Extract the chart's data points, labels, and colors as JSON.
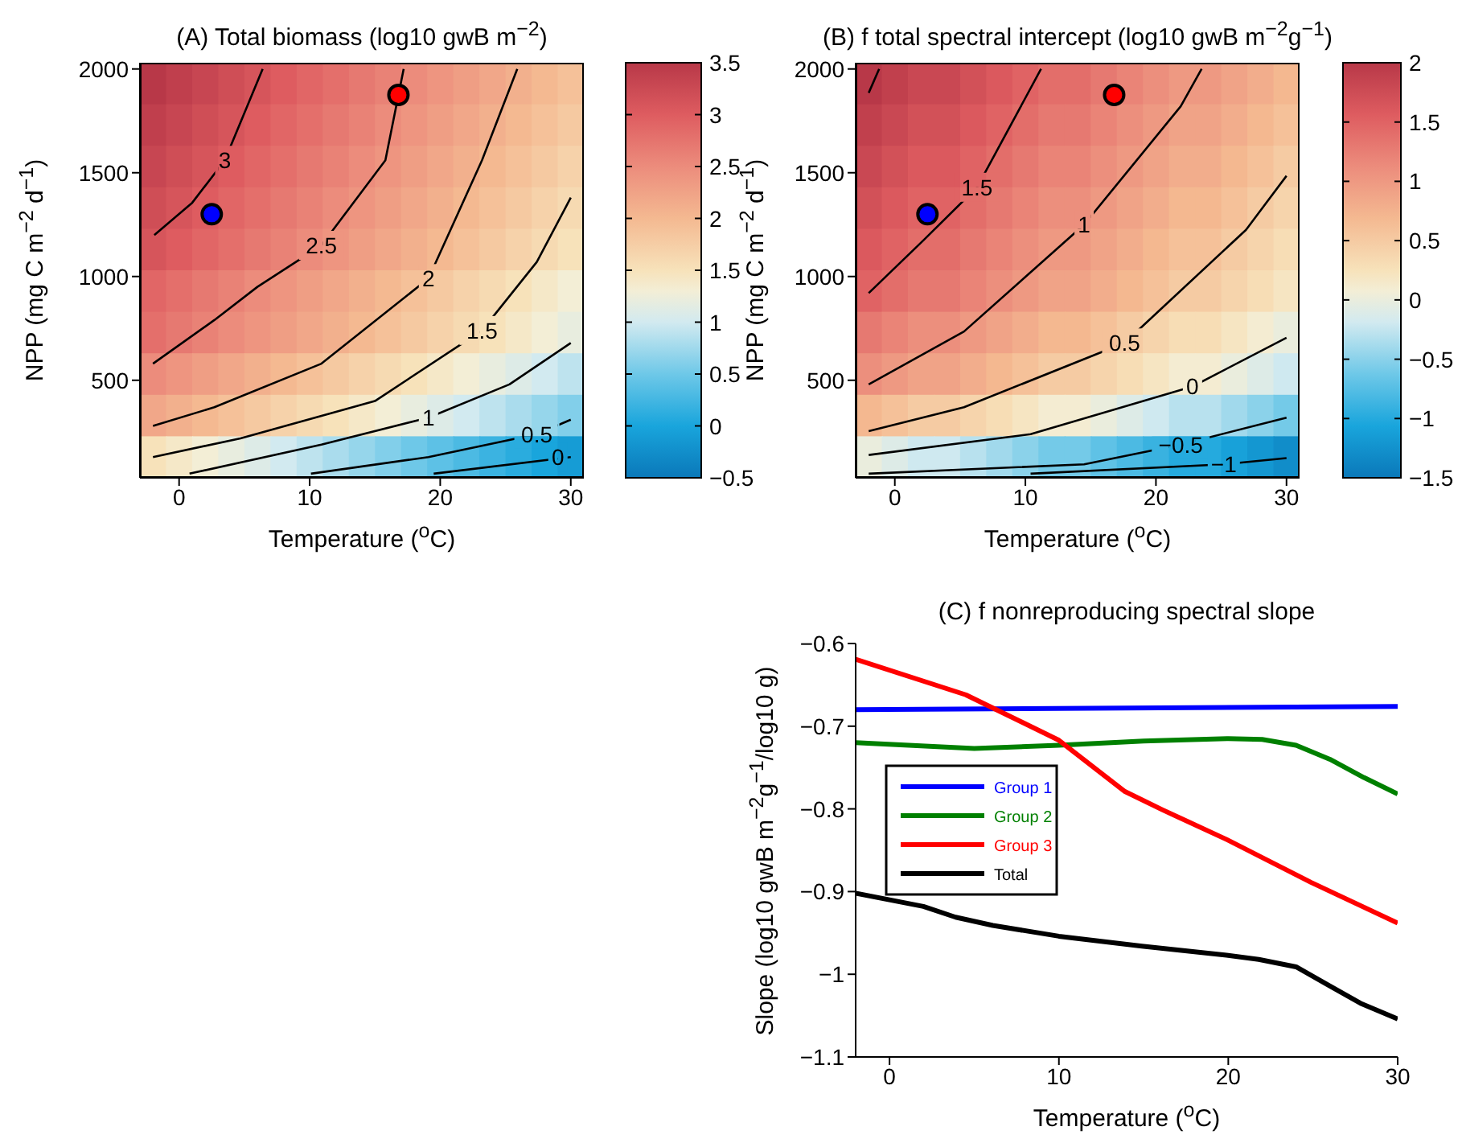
{
  "chart_data": [
    {
      "type": "heatmap",
      "title": "(A) Total biomass (log10 gwB m$^{−2}$)",
      "xlabel": "Temperature ($^{o}$C)",
      "ylabel": "NPP (mg C m$^{−2}$ d$^{−1}$)",
      "xlim": [
        -3,
        31
      ],
      "ylim": [
        30,
        2030
      ],
      "xticks": [
        0,
        10,
        20,
        30
      ],
      "yticks": [
        500,
        1000,
        1500,
        2000
      ],
      "clim": [
        -0.5,
        3.5
      ],
      "cticks": [
        -0.5,
        0,
        0.5,
        1,
        1.5,
        2,
        2.5,
        3,
        3.5
      ],
      "x": [
        -2,
        0,
        2,
        4,
        6,
        8,
        10,
        12,
        14,
        16,
        18,
        20,
        22,
        24,
        26,
        28,
        30
      ],
      "y": [
        1930,
        1730,
        1530,
        1330,
        1130,
        930,
        730,
        530,
        330,
        130
      ],
      "cells": [
        [
          3.5,
          3.4,
          3.3,
          3.2,
          3.1,
          3.0,
          2.9,
          2.8,
          2.7,
          2.6,
          2.5,
          2.4,
          2.3,
          2.2,
          2.1,
          2.0,
          1.9
        ],
        [
          3.4,
          3.3,
          3.2,
          3.1,
          3.0,
          2.9,
          2.8,
          2.7,
          2.6,
          2.5,
          2.4,
          2.3,
          2.2,
          2.1,
          2.0,
          1.9,
          1.8
        ],
        [
          3.3,
          3.2,
          3.1,
          3.0,
          2.9,
          2.8,
          2.7,
          2.6,
          2.5,
          2.4,
          2.3,
          2.2,
          2.1,
          2.0,
          1.9,
          1.8,
          1.7
        ],
        [
          3.2,
          3.1,
          3.0,
          2.9,
          2.8,
          2.7,
          2.6,
          2.5,
          2.4,
          2.3,
          2.2,
          2.1,
          2.0,
          1.9,
          1.8,
          1.7,
          1.6
        ],
        [
          3.1,
          3.0,
          2.9,
          2.8,
          2.7,
          2.6,
          2.5,
          2.4,
          2.3,
          2.2,
          2.1,
          2.0,
          1.9,
          1.8,
          1.7,
          1.6,
          1.5
        ],
        [
          2.9,
          2.8,
          2.7,
          2.6,
          2.5,
          2.4,
          2.3,
          2.2,
          2.1,
          2.0,
          1.9,
          1.8,
          1.7,
          1.6,
          1.5,
          1.4,
          1.3
        ],
        [
          2.8,
          2.7,
          2.6,
          2.5,
          2.4,
          2.3,
          2.2,
          2.1,
          2.0,
          1.9,
          1.8,
          1.7,
          1.6,
          1.5,
          1.4,
          1.3,
          1.2
        ],
        [
          2.5,
          2.4,
          2.3,
          2.2,
          2.1,
          2.0,
          1.9,
          1.8,
          1.7,
          1.6,
          1.5,
          1.4,
          1.3,
          1.2,
          1.1,
          1.0,
          0.9
        ],
        [
          2.2,
          2.1,
          2.0,
          1.9,
          1.8,
          1.7,
          1.6,
          1.5,
          1.4,
          1.3,
          1.2,
          1.1,
          1.0,
          0.9,
          0.8,
          0.7,
          0.6
        ],
        [
          1.5,
          1.4,
          1.3,
          1.2,
          1.1,
          1.0,
          0.9,
          0.8,
          0.7,
          0.6,
          0.5,
          0.4,
          0.3,
          0.2,
          0.1,
          0.0,
          -0.1
        ]
      ],
      "series": [
        {
          "type": "line",
          "name": "3",
          "color": "#000000",
          "x": [
            -1.9,
            1,
            3.5,
            6.4
          ],
          "values": [
            1200,
            1355,
            1560,
            2000
          ]
        },
        {
          "type": "line",
          "name": "2.5",
          "color": "#000000",
          "x": [
            -2,
            2.7,
            6,
            10.9,
            15.8,
            17.2
          ],
          "values": [
            580,
            790,
            950,
            1150,
            1560,
            2000
          ]
        },
        {
          "type": "line",
          "name": "2",
          "color": "#000000",
          "x": [
            -2,
            2.7,
            10.9,
            19.1,
            23.2,
            25.9
          ],
          "values": [
            280,
            370,
            580,
            990,
            1560,
            2000
          ]
        },
        {
          "type": "line",
          "name": "1.5",
          "color": "#000000",
          "x": [
            -2,
            4.7,
            15,
            23.2,
            27.4,
            30
          ],
          "values": [
            130,
            220,
            400,
            740,
            1070,
            1380
          ]
        },
        {
          "type": "line",
          "name": "1",
          "color": "#000000",
          "x": [
            0.8,
            10.9,
            19.1,
            25.3,
            30
          ],
          "values": [
            50,
            190,
            320,
            480,
            680
          ]
        },
        {
          "type": "line",
          "name": "0.5",
          "color": "#000000",
          "x": [
            10.1,
            19.1,
            27.4,
            30
          ],
          "values": [
            50,
            130,
            240,
            310
          ]
        },
        {
          "type": "line",
          "name": "0",
          "color": "#000000",
          "x": [
            19.5,
            30
          ],
          "values": [
            50,
            130
          ]
        },
        {
          "type": "scatter",
          "marker": "circle",
          "color": "#0000ff",
          "x": [
            2.5
          ],
          "values": [
            1300
          ]
        },
        {
          "type": "scatter",
          "marker": "circle",
          "color": "#ff0000",
          "x": [
            16.8
          ],
          "values": [
            1875
          ]
        }
      ]
    },
    {
      "type": "heatmap",
      "title": "(B) f total spectral intercept (log10 gwB m$^{−2}$g$^{−1}$)",
      "xlabel": "Temperature ($^{o}$C)",
      "ylabel": "NPP (mg C m$^{−2}$ d$^{−1}$)",
      "xlim": [
        -3,
        31
      ],
      "ylim": [
        30,
        2030
      ],
      "xticks": [
        0,
        10,
        20,
        30
      ],
      "yticks": [
        500,
        1000,
        1500,
        2000
      ],
      "clim": [
        -1.5,
        2
      ],
      "cticks": [
        -1.5,
        -1,
        -0.5,
        0,
        0.5,
        1,
        1.5,
        2
      ],
      "x": [
        -2,
        0,
        2,
        4,
        6,
        8,
        10,
        12,
        14,
        16,
        18,
        20,
        22,
        24,
        26,
        28,
        30
      ],
      "y": [
        1930,
        1730,
        1530,
        1330,
        1130,
        930,
        730,
        530,
        330,
        130
      ],
      "cells": [
        [
          2.0,
          1.9,
          1.8,
          1.8,
          1.7,
          1.6,
          1.5,
          1.4,
          1.4,
          1.3,
          1.2,
          1.1,
          1.0,
          1.0,
          0.9,
          0.8,
          0.7
        ],
        [
          1.9,
          1.8,
          1.7,
          1.7,
          1.6,
          1.5,
          1.4,
          1.3,
          1.3,
          1.2,
          1.1,
          1.0,
          0.9,
          0.9,
          0.8,
          0.7,
          0.6
        ],
        [
          1.8,
          1.7,
          1.6,
          1.6,
          1.5,
          1.4,
          1.3,
          1.2,
          1.2,
          1.1,
          1.0,
          0.9,
          0.8,
          0.8,
          0.7,
          0.6,
          0.5
        ],
        [
          1.7,
          1.6,
          1.5,
          1.5,
          1.4,
          1.3,
          1.2,
          1.1,
          1.1,
          1.0,
          0.9,
          0.8,
          0.7,
          0.7,
          0.6,
          0.5,
          0.4
        ],
        [
          1.6,
          1.5,
          1.4,
          1.4,
          1.3,
          1.2,
          1.1,
          1.0,
          1.0,
          0.9,
          0.8,
          0.7,
          0.6,
          0.6,
          0.5,
          0.4,
          0.3
        ],
        [
          1.5,
          1.4,
          1.3,
          1.3,
          1.2,
          1.1,
          1.0,
          0.9,
          0.9,
          0.8,
          0.7,
          0.6,
          0.5,
          0.5,
          0.4,
          0.3,
          0.2
        ],
        [
          1.3,
          1.2,
          1.1,
          1.1,
          1.0,
          0.9,
          0.8,
          0.7,
          0.7,
          0.6,
          0.5,
          0.4,
          0.3,
          0.3,
          0.2,
          0.1,
          0.0
        ],
        [
          1.1,
          1.0,
          0.9,
          0.9,
          0.8,
          0.7,
          0.6,
          0.5,
          0.5,
          0.4,
          0.3,
          0.2,
          0.1,
          0.1,
          0.0,
          -0.1,
          -0.2
        ],
        [
          0.7,
          0.6,
          0.5,
          0.5,
          0.4,
          0.3,
          0.2,
          0.1,
          0.1,
          0.0,
          -0.1,
          -0.2,
          -0.3,
          -0.3,
          -0.4,
          -0.5,
          -0.6
        ],
        [
          0.0,
          -0.1,
          -0.2,
          -0.2,
          -0.3,
          -0.4,
          -0.5,
          -0.6,
          -0.6,
          -0.7,
          -0.8,
          -0.9,
          -1.0,
          -1.0,
          -1.1,
          -1.2,
          -1.3
        ]
      ],
      "series": [
        {
          "type": "line",
          "color": "#000000",
          "x": [
            -2,
            -1.2
          ],
          "values": [
            1885,
            2000
          ]
        },
        {
          "type": "line",
          "name": "1.5",
          "color": "#000000",
          "x": [
            -2,
            2.2,
            6.3,
            11.2
          ],
          "values": [
            920,
            1175,
            1430,
            2000
          ]
        },
        {
          "type": "line",
          "name": "1",
          "color": "#000000",
          "x": [
            -2,
            5.3,
            14.5,
            21.9,
            23.5
          ],
          "values": [
            480,
            735,
            1250,
            1820,
            2000
          ]
        },
        {
          "type": "line",
          "name": "0.5",
          "color": "#000000",
          "x": [
            -2,
            5.3,
            17.6,
            26.9,
            30
          ],
          "values": [
            255,
            370,
            680,
            1225,
            1485
          ]
        },
        {
          "type": "line",
          "name": "0",
          "color": "#000000",
          "x": [
            -2,
            10.4,
            22.8,
            30
          ],
          "values": [
            140,
            240,
            470,
            705
          ]
        },
        {
          "type": "line",
          "name": "−0.5",
          "color": "#000000",
          "x": [
            -2,
            14.5,
            21.9,
            30
          ],
          "values": [
            50,
            95,
            190,
            320
          ]
        },
        {
          "type": "line",
          "name": "−1",
          "color": "#000000",
          "x": [
            10.4,
            25.2,
            30
          ],
          "values": [
            50,
            95,
            125
          ]
        },
        {
          "type": "scatter",
          "marker": "circle",
          "color": "#0000ff",
          "x": [
            2.5
          ],
          "values": [
            1300
          ]
        },
        {
          "type": "scatter",
          "marker": "circle",
          "color": "#ff0000",
          "x": [
            16.8
          ],
          "values": [
            1875
          ]
        }
      ]
    },
    {
      "type": "line",
      "title": "(C) f nonreproducing spectral slope",
      "xlabel": "Temperature ($^{o}$C)",
      "ylabel": "Slope (log10 gwB m$^{−2}$g$^{−1}$/log10 g)",
      "xlim": [
        -2,
        30
      ],
      "ylim": [
        -1.1,
        -0.6
      ],
      "xticks": [
        0,
        10,
        20,
        30
      ],
      "yticks": [
        -1.1,
        -1,
        -0.9,
        -0.8,
        -0.7,
        -0.6
      ],
      "legend": "left",
      "series": [
        {
          "name": "Group 1",
          "color": "#0000ff",
          "x": [
            -2,
            30
          ],
          "values": [
            -0.68,
            -0.676
          ]
        },
        {
          "name": "Group 2",
          "color": "#008000",
          "x": [
            -2,
            5,
            10,
            15,
            20,
            22,
            24,
            26,
            28,
            30
          ],
          "values": [
            -0.72,
            -0.727,
            -0.723,
            -0.718,
            -0.715,
            -0.716,
            -0.723,
            -0.74,
            -0.762,
            -0.782
          ]
        },
        {
          "name": "Group 3",
          "color": "#ff0000",
          "x": [
            -2,
            4.5,
            10,
            13.9,
            16.1,
            19.9,
            24.9,
            30
          ],
          "values": [
            -0.619,
            -0.662,
            -0.717,
            -0.779,
            -0.801,
            -0.837,
            -0.889,
            -0.938
          ]
        },
        {
          "name": "Total",
          "color": "#000000",
          "x": [
            -2,
            2,
            3.9,
            6.1,
            10,
            14.9,
            19.9,
            21.8,
            24,
            25.9,
            27.8,
            30
          ],
          "values": [
            -0.902,
            -0.918,
            -0.931,
            -0.941,
            -0.954,
            -0.966,
            -0.977,
            -0.982,
            -0.991,
            -1.013,
            -1.035,
            -1.054
          ]
        }
      ]
    }
  ]
}
